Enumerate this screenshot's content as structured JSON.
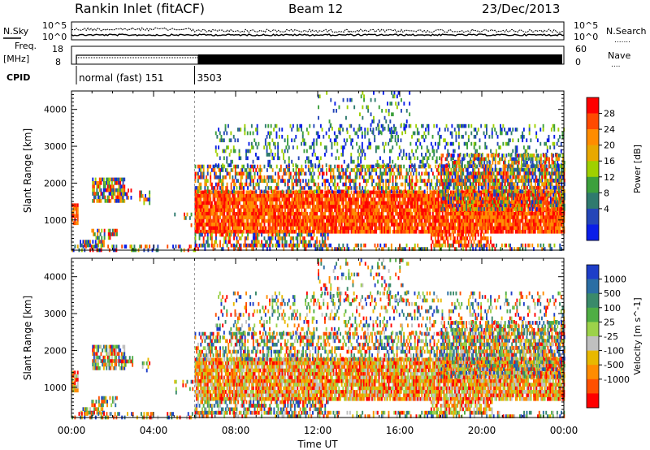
{
  "header": {
    "station": "Rankin Inlet (fitACF)",
    "beam": "Beam 12",
    "date": "23/Dec/2013"
  },
  "summary": {
    "nsky_label": "N.Sky",
    "nsearch_label": "N.Search",
    "nsearch_marker": ".......",
    "count_ticks": [
      "10^5",
      "10^0"
    ],
    "freq_label": "Freq.",
    "freq_unit": "[MHz]",
    "freq_ticks": [
      "18",
      "8"
    ],
    "nave_label": "Nave",
    "nave_marker": "....",
    "nave_ticks": [
      "60",
      "0"
    ],
    "cpid_label": "CPID",
    "cpid_segments": [
      {
        "label": "normal (fast) 151",
        "start_hour": 0,
        "end_hour": 6
      },
      {
        "label": "3503",
        "start_hour": 6,
        "end_hour": 24
      }
    ]
  },
  "chart_data": [
    {
      "type": "heatmap",
      "quantity": "power",
      "ylabel": "Slant Range [km]",
      "xlabel": "",
      "xlim": [
        0,
        24
      ],
      "ylim": [
        180,
        4500
      ],
      "yticks": [
        "1000",
        "2000",
        "3000",
        "4000"
      ],
      "colorbar": {
        "label": "Power [dB]",
        "ticks": [
          "28",
          "24",
          "20",
          "16",
          "12",
          "8",
          "4"
        ],
        "colors": [
          "#ff0000",
          "#ff4a00",
          "#ff8c00",
          "#e8a800",
          "#9fd000",
          "#3ca03c",
          "#2f7a6e",
          "#2446b8",
          "#0a1ee8"
        ]
      }
    },
    {
      "type": "heatmap",
      "quantity": "velocity",
      "ylabel": "Slant Range [km]",
      "xlabel": "Time UT",
      "xlim": [
        0,
        24
      ],
      "ylim": [
        180,
        4500
      ],
      "yticks": [
        "1000",
        "2000",
        "3000",
        "4000"
      ],
      "xticks": [
        "00:00",
        "04:00",
        "08:00",
        "12:00",
        "16:00",
        "20:00",
        "00:00"
      ],
      "colorbar": {
        "label": "Velocity [m s^-1]",
        "ticks": [
          "1000",
          "500",
          "100",
          "25",
          "-25",
          "-100",
          "-500",
          "-1000"
        ],
        "colors": [
          "#1e3ec8",
          "#2a6ea4",
          "#3a8a6a",
          "#4fae44",
          "#9cd24a",
          "#c0c0c0",
          "#e8b800",
          "#ff8c00",
          "#ff5000",
          "#ff0000"
        ]
      }
    }
  ]
}
